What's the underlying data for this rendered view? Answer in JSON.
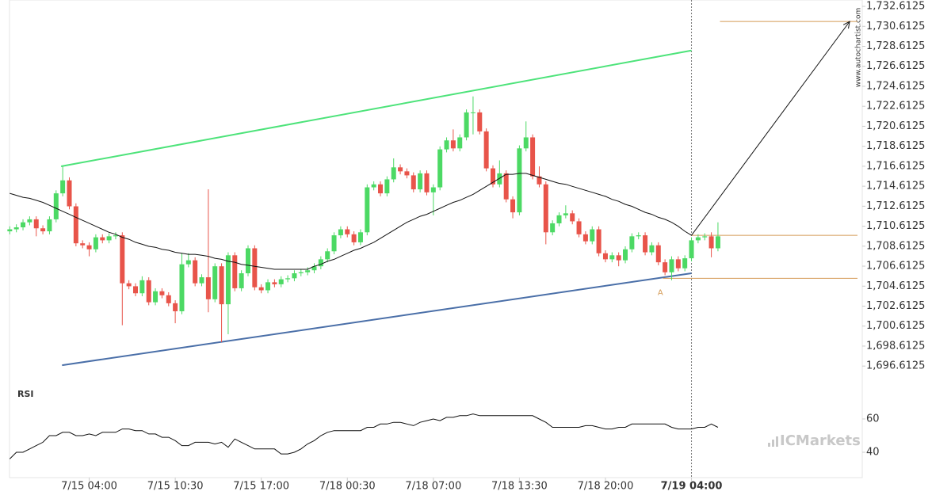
{
  "chart_data": {
    "type": "candlestick",
    "watermark": "www.autochartist.com",
    "brand": "ICMarkets",
    "categories": [
      null,
      null,
      null,
      null,
      null,
      null,
      null,
      null,
      null,
      null,
      null,
      null,
      "7/15 04:00",
      null,
      null,
      null,
      null,
      null,
      null,
      null,
      null,
      null,
      null,
      null,
      null,
      "7/15 10:30",
      null,
      null,
      null,
      null,
      null,
      null,
      null,
      null,
      null,
      null,
      null,
      null,
      "7/15 17:00",
      null,
      null,
      null,
      null,
      null,
      null,
      null,
      null,
      null,
      null,
      null,
      null,
      "7/18 00:30",
      null,
      null,
      null,
      null,
      null,
      null,
      null,
      null,
      null,
      null,
      null,
      null,
      "7/18 07:00",
      null,
      null,
      null,
      null,
      null,
      null,
      null,
      null,
      null,
      null,
      null,
      null,
      "7/18 13:30",
      null,
      null,
      null,
      null,
      null,
      null,
      null,
      null,
      null,
      null,
      null,
      null,
      "7/18 20:00",
      null,
      null,
      null,
      null,
      null,
      null,
      null,
      null,
      null,
      null,
      null,
      null,
      "7/19 04:00",
      null,
      null,
      null,
      null
    ],
    "bold_category": 103,
    "up_color": "#4cd964",
    "down_color": "#e8544a",
    "open": [
      1710.1,
      1710.3,
      1710.5,
      1711.0,
      1711.3,
      1710.4,
      1710.1,
      1711.3,
      1713.9,
      1715.2,
      1712.6,
      1708.9,
      1708.7,
      1708.3,
      1709.5,
      1709.2,
      1709.6,
      1709.7,
      1704.9,
      1704.6,
      1703.9,
      1705.2,
      1703.0,
      1704.1,
      1703.7,
      1702.9,
      1702.1,
      1706.8,
      1707.2,
      1704.9,
      1705.5,
      1703.3,
      1706.6,
      1702.8,
      1707.7,
      1704.4,
      1705.9,
      1708.4,
      1704.5,
      1704.2,
      1705.0,
      1704.8,
      1705.3,
      1705.4,
      1705.9,
      1706.0,
      1706.2,
      1706.6,
      1707.3,
      1708.1,
      1709.7,
      1710.3,
      1709.8,
      1709.0,
      1710.0,
      1714.5,
      1714.8,
      1713.9,
      1715.3,
      1716.5,
      1716.1,
      1715.7,
      1714.3,
      1715.9,
      1714.0,
      1714.5,
      1718.3,
      1719.2,
      1718.4,
      1719.5,
      1722.0,
      1722.0,
      1720.1,
      1716.4,
      1714.8,
      1715.9,
      1713.3,
      1712.0,
      1718.4,
      1719.5,
      1715.6,
      1714.8,
      1710.0,
      1710.9,
      1711.7,
      1711.9,
      1711.1,
      1709.8,
      1709.1,
      1710.3,
      1707.9,
      1707.3,
      1707.7,
      1707.2,
      1708.3,
      1709.6,
      1709.7,
      1708.0,
      1708.7,
      1707.0,
      1706.0,
      1707.3,
      1706.4,
      1707.4,
      1709.2,
      1709.5,
      1709.6,
      1708.4
    ],
    "high": [
      1710.6,
      1710.8,
      1711.3,
      1711.6,
      1711.6,
      1710.7,
      1711.6,
      1714.2,
      1716.6,
      1715.5,
      1712.9,
      1709.2,
      1709.0,
      1709.8,
      1709.8,
      1709.9,
      1710.0,
      1710.0,
      1705.2,
      1704.9,
      1705.6,
      1705.5,
      1704.4,
      1704.4,
      1704.0,
      1703.2,
      1707.9,
      1707.9,
      1707.5,
      1705.8,
      1714.3,
      1706.9,
      1706.9,
      1708.0,
      1708.0,
      1706.2,
      1708.7,
      1708.7,
      1704.8,
      1705.3,
      1705.3,
      1705.6,
      1705.7,
      1706.2,
      1706.3,
      1706.5,
      1706.9,
      1707.6,
      1708.4,
      1710.0,
      1710.6,
      1710.6,
      1710.1,
      1710.3,
      1714.8,
      1715.1,
      1715.1,
      1715.6,
      1717.4,
      1716.8,
      1716.4,
      1716.0,
      1716.2,
      1716.2,
      1714.8,
      1718.6,
      1719.5,
      1720.3,
      1719.8,
      1722.3,
      1723.6,
      1722.3,
      1720.4,
      1716.7,
      1717.2,
      1716.2,
      1713.6,
      1718.7,
      1721.1,
      1719.8,
      1716.6,
      1715.1,
      1711.2,
      1712.0,
      1712.7,
      1712.2,
      1711.4,
      1710.1,
      1710.6,
      1710.6,
      1708.2,
      1708.0,
      1708.0,
      1708.6,
      1709.9,
      1710.0,
      1710.0,
      1709.0,
      1709.0,
      1707.3,
      1707.6,
      1707.6,
      1707.7,
      1709.5,
      1709.8,
      1709.9,
      1710.0,
      1711.0
    ],
    "low": [
      1709.8,
      1710.0,
      1710.2,
      1710.7,
      1709.6,
      1709.8,
      1709.8,
      1711.0,
      1713.6,
      1712.3,
      1708.6,
      1708.4,
      1707.6,
      1708.0,
      1708.9,
      1708.9,
      1709.3,
      1700.7,
      1704.3,
      1703.6,
      1703.6,
      1702.7,
      1702.7,
      1703.4,
      1702.6,
      1700.9,
      1701.8,
      1706.5,
      1704.6,
      1704.6,
      1702.0,
      1703.0,
      1699.0,
      1699.8,
      1704.1,
      1704.1,
      1705.6,
      1704.2,
      1703.9,
      1703.9,
      1704.5,
      1704.5,
      1705.0,
      1705.1,
      1705.6,
      1705.7,
      1705.9,
      1706.3,
      1707.0,
      1707.8,
      1709.4,
      1709.5,
      1708.7,
      1708.7,
      1709.7,
      1714.2,
      1713.6,
      1713.6,
      1715.0,
      1715.8,
      1715.4,
      1714.0,
      1714.0,
      1713.7,
      1711.7,
      1714.2,
      1718.0,
      1718.1,
      1718.1,
      1719.2,
      1719.8,
      1719.8,
      1716.1,
      1714.5,
      1714.5,
      1713.0,
      1711.4,
      1711.7,
      1718.1,
      1715.3,
      1714.5,
      1708.8,
      1709.7,
      1710.6,
      1711.4,
      1710.8,
      1709.5,
      1708.8,
      1708.8,
      1707.6,
      1707.0,
      1707.0,
      1706.6,
      1706.9,
      1708.0,
      1709.3,
      1707.7,
      1707.7,
      1706.7,
      1705.7,
      1705.2,
      1706.1,
      1706.1,
      1707.1,
      1708.9,
      1709.2,
      1707.5,
      1708.1
    ],
    "close": [
      1710.3,
      1710.5,
      1711.0,
      1711.3,
      1710.4,
      1710.1,
      1711.3,
      1713.9,
      1715.2,
      1712.6,
      1708.9,
      1708.7,
      1708.3,
      1709.5,
      1709.2,
      1709.6,
      1709.7,
      1704.9,
      1704.6,
      1703.9,
      1705.2,
      1703.0,
      1704.1,
      1703.7,
      1702.9,
      1702.1,
      1706.8,
      1707.2,
      1704.9,
      1705.5,
      1703.3,
      1706.6,
      1702.8,
      1707.7,
      1704.4,
      1705.9,
      1708.4,
      1704.5,
      1704.2,
      1705.0,
      1704.8,
      1705.3,
      1705.4,
      1705.9,
      1706.0,
      1706.2,
      1706.6,
      1707.3,
      1708.1,
      1709.7,
      1710.3,
      1709.8,
      1709.0,
      1710.0,
      1714.5,
      1714.8,
      1713.9,
      1715.3,
      1716.5,
      1716.1,
      1715.7,
      1714.3,
      1715.9,
      1714.0,
      1714.5,
      1718.3,
      1719.2,
      1718.4,
      1719.5,
      1722.0,
      1722.0,
      1720.1,
      1716.4,
      1714.8,
      1715.9,
      1713.3,
      1712.0,
      1718.4,
      1719.5,
      1715.6,
      1714.8,
      1710.0,
      1710.9,
      1711.7,
      1711.9,
      1711.1,
      1709.8,
      1709.1,
      1710.3,
      1707.9,
      1707.3,
      1707.7,
      1707.2,
      1708.3,
      1709.6,
      1709.7,
      1708.0,
      1708.7,
      1707.0,
      1706.0,
      1707.3,
      1706.4,
      1707.4,
      1709.2,
      1709.5,
      1709.6,
      1708.4,
      1709.6
    ],
    "ma": {
      "color": "#111111",
      "values": [
        1713.9,
        1713.7,
        1713.5,
        1713.4,
        1713.2,
        1713.0,
        1712.7,
        1712.4,
        1712.1,
        1711.8,
        1711.5,
        1711.2,
        1710.9,
        1710.6,
        1710.3,
        1710.0,
        1709.8,
        1709.5,
        1709.3,
        1709.0,
        1708.8,
        1708.6,
        1708.5,
        1708.3,
        1708.2,
        1708.0,
        1707.9,
        1707.8,
        1707.8,
        1707.7,
        1707.6,
        1707.4,
        1707.3,
        1707.1,
        1707.0,
        1706.8,
        1706.7,
        1706.6,
        1706.5,
        1706.4,
        1706.3,
        1706.3,
        1706.3,
        1706.3,
        1706.3,
        1706.3,
        1706.6,
        1706.8,
        1707.1,
        1707.3,
        1707.6,
        1707.9,
        1708.2,
        1708.4,
        1708.7,
        1709.0,
        1709.4,
        1709.8,
        1710.2,
        1710.6,
        1711.0,
        1711.3,
        1711.6,
        1711.8,
        1712.1,
        1712.4,
        1712.7,
        1713.0,
        1713.2,
        1713.5,
        1713.8,
        1714.2,
        1714.6,
        1715.0,
        1715.4,
        1715.8,
        1715.8,
        1715.9,
        1715.9,
        1715.7,
        1715.5,
        1715.3,
        1715.1,
        1714.9,
        1714.8,
        1714.6,
        1714.4,
        1714.2,
        1714.0,
        1713.8,
        1713.6,
        1713.3,
        1713.1,
        1712.8,
        1712.6,
        1712.3,
        1712.0,
        1711.8,
        1711.5,
        1711.3,
        1711.0,
        1710.6,
        1710.1,
        1709.7,
        null,
        null,
        null,
        null
      ]
    },
    "xlim": [
      -0.04,
      128.8
    ],
    "ylim": [
      1695.2,
      1733.25
    ],
    "yticks": [
      {
        "value": 1696.6125,
        "label": "1,696.6125"
      },
      {
        "value": 1698.6125,
        "label": "1,698.6125"
      },
      {
        "value": 1700.6125,
        "label": "1,700.6125"
      },
      {
        "value": 1702.6125,
        "label": "1,702.6125"
      },
      {
        "value": 1704.6125,
        "label": "1,704.6125"
      },
      {
        "value": 1706.6125,
        "label": "1,706.6125"
      },
      {
        "value": 1708.6125,
        "label": "1,708.6125"
      },
      {
        "value": 1710.6125,
        "label": "1,710.6125"
      },
      {
        "value": 1712.6125,
        "label": "1,712.6125"
      },
      {
        "value": 1714.6125,
        "label": "1,714.6125"
      },
      {
        "value": 1716.6125,
        "label": "1,716.6125"
      },
      {
        "value": 1718.6125,
        "label": "1,718.6125"
      },
      {
        "value": 1720.6125,
        "label": "1,720.6125"
      },
      {
        "value": 1722.6125,
        "label": "1,722.6125"
      },
      {
        "value": 1724.6125,
        "label": "1,724.6125"
      },
      {
        "value": 1726.6125,
        "label": "1,726.6125"
      },
      {
        "value": 1728.6125,
        "label": "1,728.6125"
      },
      {
        "value": 1730.6125,
        "label": "1,730.6125"
      },
      {
        "value": 1732.6125,
        "label": "1,732.6125"
      }
    ],
    "channel_upper": {
      "color": "#4de37a",
      "x": [
        7.75,
        103
      ],
      "y": [
        1716.6,
        1728.2
      ]
    },
    "channel_lower": {
      "color": "#4a6fa8",
      "x": [
        7.9,
        103
      ],
      "y": [
        1696.7,
        1705.9
      ]
    },
    "level_color": "#d49a55",
    "levels": [
      {
        "value": 1709.7,
        "from": 103
      },
      {
        "value": 1705.4,
        "from": 98.7
      },
      {
        "value": 1731.1,
        "from": 107.3
      }
    ],
    "arrow": {
      "x": [
        103,
        126.9
      ],
      "y": [
        1709.7,
        1731.1
      ]
    },
    "point_label": {
      "text": "A",
      "x": 98.3,
      "y": 1704.9
    },
    "time_marker": 103,
    "rsi": {
      "title": "RSI",
      "color": "#111111",
      "ylim": [
        26.2,
        71.4
      ],
      "yticks": [
        40,
        60
      ],
      "values": [
        36,
        40,
        40,
        42,
        44,
        46,
        50,
        50,
        52,
        52,
        50,
        50,
        51,
        50,
        52,
        52,
        52,
        54,
        54,
        53,
        53,
        51,
        51,
        49,
        49,
        47,
        44,
        44,
        46,
        46,
        46,
        45,
        46,
        43,
        48,
        46,
        44,
        42,
        42,
        42,
        42,
        39,
        39,
        40,
        42,
        45,
        47,
        50,
        52,
        53,
        53,
        53,
        53,
        53,
        55,
        55,
        57,
        57,
        58,
        58,
        57,
        56,
        58,
        59,
        60,
        59,
        61,
        61,
        62,
        62,
        63,
        62,
        62,
        62,
        62,
        62,
        62,
        62,
        62,
        62,
        60,
        58,
        55,
        55,
        55,
        55,
        55,
        56,
        56,
        55,
        54,
        54,
        55,
        55,
        57,
        57,
        57,
        57,
        57,
        57,
        55,
        54,
        54,
        54,
        55,
        55,
        57,
        55
      ]
    }
  }
}
